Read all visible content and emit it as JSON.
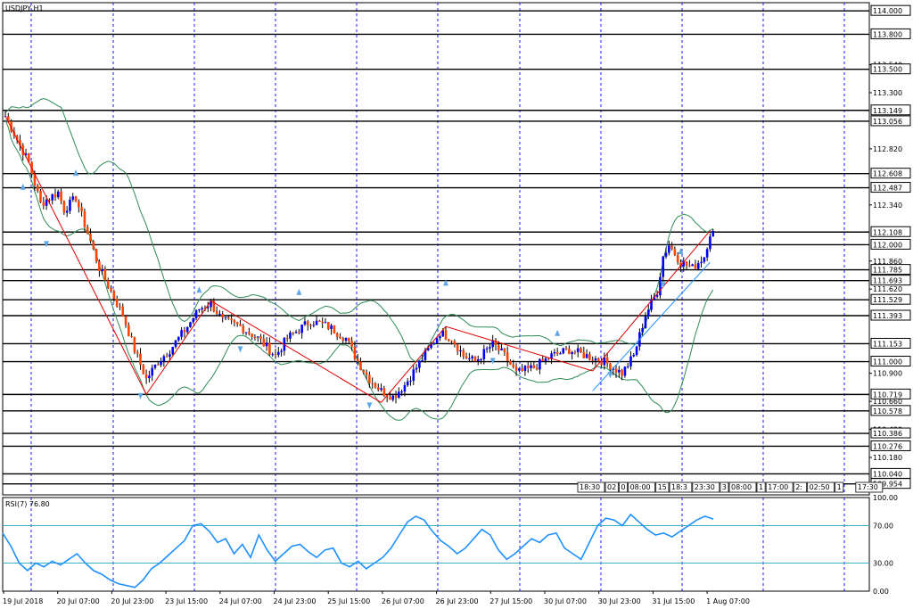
{
  "window": {
    "symbol_label": "USDJPY,H1"
  },
  "chart_data": [
    {
      "type": "candlestick",
      "title": "USDJPY,H1",
      "ylim": [
        109.86,
        114.07
      ],
      "y_tick_labels": [
        "114.000",
        "113.800",
        "113.540",
        "113.500",
        "113.300",
        "113.149",
        "113.056",
        "112.820",
        "112.608",
        "112.487",
        "112.340",
        "112.108",
        "112.000",
        "111.860",
        "111.785",
        "111.693",
        "111.620",
        "111.529",
        "111.393",
        "111.153",
        "111.000",
        "110.900",
        "110.719",
        "110.660",
        "110.578",
        "110.420",
        "110.386",
        "110.276",
        "110.180",
        "110.040",
        "109.954"
      ],
      "horizontal_levels": [
        114.0,
        113.8,
        113.5,
        113.149,
        113.056,
        112.608,
        112.487,
        112.108,
        112.0,
        111.785,
        111.693,
        111.529,
        111.393,
        111.153,
        111.0,
        110.719,
        110.578,
        110.386,
        110.276,
        110.04,
        109.954
      ],
      "x_tick_labels": [
        "19 Jul 2018",
        "20 Jul 07:00",
        "20 Jul 23:00",
        "23 Jul 15:00",
        "24 Jul 07:00",
        "24 Jul 23:00",
        "25 Jul 15:00",
        "26 Jul 07:00",
        "26 Jul 23:00",
        "27 Jul 15:00",
        "30 Jul 07:00",
        "30 Jul 23:00",
        "31 Jul 15:00",
        "1 Aug 07:00"
      ],
      "price_path": [
        [
          0,
          113.1
        ],
        [
          4,
          112.9
        ],
        [
          8,
          112.7
        ],
        [
          12,
          112.35
        ],
        [
          18,
          112.45
        ],
        [
          20,
          112.3
        ],
        [
          24,
          112.4
        ],
        [
          28,
          112.1
        ],
        [
          32,
          111.8
        ],
        [
          36,
          111.6
        ],
        [
          40,
          111.4
        ],
        [
          44,
          111.1
        ],
        [
          48,
          110.85
        ],
        [
          52,
          111.0
        ],
        [
          56,
          111.1
        ],
        [
          62,
          111.3
        ],
        [
          66,
          111.45
        ],
        [
          70,
          111.5
        ],
        [
          74,
          111.35
        ],
        [
          80,
          111.3
        ],
        [
          86,
          111.2
        ],
        [
          92,
          111.05
        ],
        [
          96,
          111.2
        ],
        [
          104,
          111.35
        ],
        [
          110,
          111.3
        ],
        [
          116,
          111.2
        ],
        [
          120,
          111.0
        ],
        [
          124,
          110.85
        ],
        [
          128,
          110.75
        ],
        [
          132,
          110.7
        ],
        [
          136,
          110.8
        ],
        [
          140,
          110.95
        ],
        [
          144,
          111.1
        ],
        [
          148,
          111.25
        ],
        [
          152,
          111.2
        ],
        [
          156,
          111.05
        ],
        [
          160,
          111.0
        ],
        [
          166,
          111.15
        ],
        [
          170,
          111.05
        ],
        [
          174,
          110.9
        ],
        [
          180,
          110.95
        ],
        [
          186,
          111.05
        ],
        [
          192,
          111.1
        ],
        [
          198,
          111.05
        ],
        [
          204,
          111.0
        ],
        [
          210,
          110.9
        ],
        [
          214,
          111.05
        ],
        [
          218,
          111.4
        ],
        [
          222,
          111.6
        ],
        [
          224,
          111.9
        ],
        [
          226,
          112.0
        ],
        [
          230,
          111.85
        ],
        [
          234,
          111.8
        ],
        [
          238,
          111.9
        ],
        [
          240,
          112.1
        ]
      ],
      "fractal_markers": "up and down arrows at swing highs and lows",
      "bollinger_bands": true
    },
    {
      "type": "line",
      "title": "RSI(7) 76.80",
      "ylim": [
        0,
        100
      ],
      "y_tick_labels": [
        "100.00",
        "70.00",
        "30.00",
        "0.00"
      ],
      "levels": [
        70,
        30
      ],
      "values": [
        62,
        48,
        30,
        22,
        30,
        26,
        32,
        28,
        34,
        40,
        30,
        22,
        18,
        12,
        8,
        6,
        4,
        12,
        24,
        30,
        38,
        46,
        54,
        70,
        72,
        64,
        52,
        56,
        40,
        50,
        36,
        60,
        44,
        32,
        40,
        48,
        50,
        42,
        36,
        44,
        46,
        30,
        26,
        32,
        24,
        30,
        36,
        46,
        60,
        74,
        80,
        76,
        64,
        54,
        48,
        40,
        46,
        56,
        66,
        60,
        44,
        34,
        40,
        48,
        56,
        52,
        60,
        62,
        46,
        40,
        34,
        52,
        70,
        78,
        76,
        70,
        82,
        74,
        66,
        60,
        62,
        58,
        64,
        70,
        76,
        80,
        77
      ]
    }
  ],
  "time_boxes": [
    "18:30",
    "02",
    "0",
    "08:00",
    "15",
    "18:3",
    "23:30",
    "3",
    "08:00",
    "1",
    "17:00",
    "2:",
    "02:50",
    "1",
    "17:30"
  ]
}
